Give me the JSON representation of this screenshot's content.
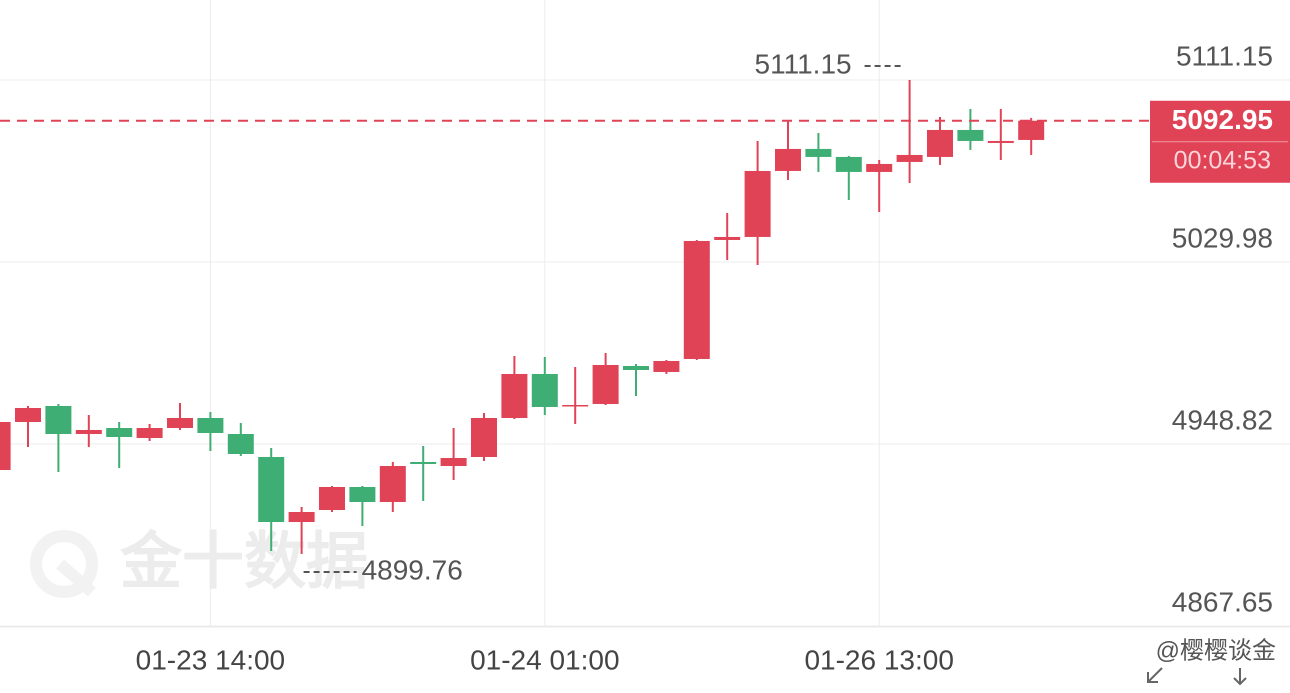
{
  "chart_data": {
    "type": "candlestick",
    "categories": [
      null,
      null,
      null,
      null,
      null,
      null,
      null,
      "01-23 14:00",
      null,
      null,
      null,
      null,
      null,
      null,
      null,
      null,
      null,
      null,
      "01-24 01:00",
      null,
      null,
      null,
      null,
      null,
      null,
      null,
      null,
      null,
      null,
      "01-26 13:00",
      null,
      null,
      null,
      null,
      null
    ],
    "open": [
      4937.21,
      4958.62,
      4965.75,
      4953.27,
      4955.94,
      4951.48,
      4955.94,
      4960.4,
      4953.27,
      4943.01,
      4914.02,
      4919.37,
      4929.63,
      4922.94,
      4940.78,
      4938.99,
      4943.01,
      4960.4,
      4980.03,
      4965.75,
      4966.65,
      4983.59,
      4980.92,
      4986.72,
      5039.79,
      5041.13,
      5070.56,
      5080.38,
      5076.81,
      5070.12,
      5074.58,
      5076.81,
      5088.85,
      5083.05,
      5084.39
    ],
    "high": [
      4958.62,
      4965.75,
      4966.65,
      4961.74,
      4958.62,
      4957.73,
      4967.09,
      4963.08,
      4958.17,
      4947.02,
      4920.71,
      4930.07,
      4930.07,
      4940.78,
      4947.91,
      4955.94,
      4962.63,
      4988.05,
      4987.61,
      4983.15,
      4989.39,
      4984.49,
      4986.27,
      5039.79,
      5051.83,
      5083.94,
      5093.31,
      5087.51,
      5077.25,
      5075.47,
      5111.15,
      5094.65,
      5098.22,
      5098.22,
      5094.2
    ],
    "low": [
      4937.21,
      4947.47,
      4936.32,
      4947.47,
      4938.1,
      4950.14,
      4955.05,
      4945.68,
      4943.45,
      4901.08,
      4899.76,
      4918.48,
      4912.23,
      4918.48,
      4923.38,
      4932.75,
      4941.22,
      4959.96,
      4961.74,
      4957.73,
      4966.2,
      4970.21,
      4980.03,
      4986.27,
      5030.87,
      5028.64,
      5066.55,
      5070.12,
      5057.63,
      5052.28,
      5065.21,
      5073.24,
      5079.93,
      5075.47,
      5077.7
    ],
    "close": [
      4958.62,
      4964.86,
      4953.27,
      4955.05,
      4951.93,
      4955.94,
      4960.4,
      4953.71,
      4944.35,
      4914.02,
      4918.48,
      4929.63,
      4922.94,
      4938.99,
      4939.89,
      4942.56,
      4960.4,
      4980.03,
      4965.31,
      4966.2,
      4984.04,
      4981.81,
      4985.82,
      5039.34,
      5041.13,
      5070.56,
      5080.38,
      5076.81,
      5070.12,
      5073.69,
      5077.7,
      5088.85,
      5083.94,
      5083.94,
      5092.95
    ],
    "up_color": "#e04355",
    "down_color": "#3fae74",
    "ylim": [
      4867.2,
      5146.8
    ],
    "yticks": [
      5111.15,
      5029.98,
      4948.82,
      4867.65
    ],
    "grid": true,
    "countdown": "00:04:53",
    "watermark": "金十数据",
    "credit": "@樱樱谈金"
  }
}
